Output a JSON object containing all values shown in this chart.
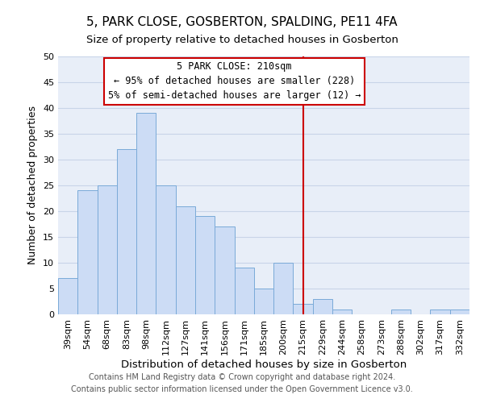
{
  "title": "5, PARK CLOSE, GOSBERTON, SPALDING, PE11 4FA",
  "subtitle": "Size of property relative to detached houses in Gosberton",
  "xlabel": "Distribution of detached houses by size in Gosberton",
  "ylabel": "Number of detached properties",
  "bar_labels": [
    "39sqm",
    "54sqm",
    "68sqm",
    "83sqm",
    "98sqm",
    "112sqm",
    "127sqm",
    "141sqm",
    "156sqm",
    "171sqm",
    "185sqm",
    "200sqm",
    "215sqm",
    "229sqm",
    "244sqm",
    "258sqm",
    "273sqm",
    "288sqm",
    "302sqm",
    "317sqm",
    "332sqm"
  ],
  "bar_values": [
    7,
    24,
    25,
    32,
    39,
    25,
    21,
    19,
    17,
    9,
    5,
    10,
    2,
    3,
    1,
    0,
    0,
    1,
    0,
    1,
    1
  ],
  "bar_color": "#ccdcf5",
  "bar_edge_color": "#7aaad8",
  "grid_color": "#c8d4e8",
  "vline_x": 12,
  "vline_color": "#cc0000",
  "ylim": [
    0,
    50
  ],
  "yticks": [
    0,
    5,
    10,
    15,
    20,
    25,
    30,
    35,
    40,
    45,
    50
  ],
  "annotation_title": "5 PARK CLOSE: 210sqm",
  "annotation_line1": "← 95% of detached houses are smaller (228)",
  "annotation_line2": "5% of semi-detached houses are larger (12) →",
  "annotation_box_color": "#ffffff",
  "annotation_box_edge": "#cc0000",
  "footer_line1": "Contains HM Land Registry data © Crown copyright and database right 2024.",
  "footer_line2": "Contains public sector information licensed under the Open Government Licence v3.0.",
  "title_fontsize": 11,
  "subtitle_fontsize": 9.5,
  "xlabel_fontsize": 9.5,
  "ylabel_fontsize": 9,
  "tick_fontsize": 8,
  "footer_fontsize": 7,
  "annotation_title_fontsize": 9,
  "annotation_text_fontsize": 8.5
}
